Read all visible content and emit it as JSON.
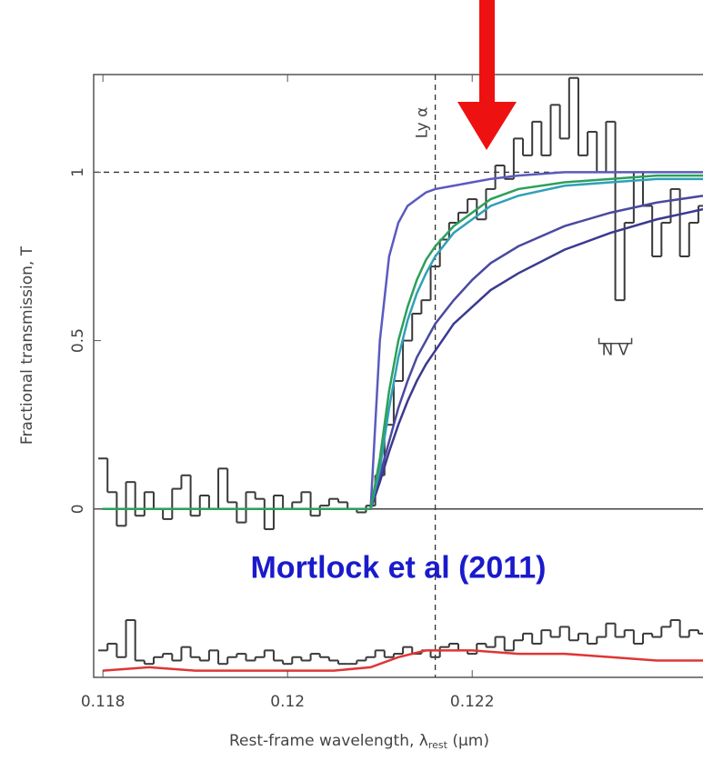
{
  "chart_data": {
    "type": "line",
    "ylabel": "Fractional transmission, T",
    "xlabel": "Rest-frame wavelength, λ",
    "xlabel_sub": "rest",
    "xlabel_unit": " (μm)",
    "xlim": [
      0.1179,
      0.1245
    ],
    "ylim": [
      -0.5,
      1.29
    ],
    "xticks": [
      0.118,
      0.12,
      0.122
    ],
    "yticks": [
      0,
      0.5,
      1
    ],
    "hlines": [
      {
        "y": 0,
        "style": "solid"
      },
      {
        "y": 1,
        "style": "dashed"
      }
    ],
    "vlines": [
      {
        "x": 0.1216,
        "style": "dashed",
        "label": "Ly α"
      }
    ],
    "annotations": [
      {
        "text": "N V",
        "x": 0.12355,
        "y": 0.47
      },
      {
        "text": "Mortlock et al (2011)",
        "x": 0.1212,
        "y": -0.18,
        "color": "#1a1acc"
      }
    ],
    "series": [
      {
        "color": "#3a3a3a",
        "step": true,
        "x": [
          0.118,
          0.1181,
          0.1182,
          0.1183,
          0.1184,
          0.1185,
          0.1186,
          0.1187,
          0.1188,
          0.1189,
          0.119,
          0.1191,
          0.1192,
          0.1193,
          0.1194,
          0.1195,
          0.1196,
          0.1197,
          0.1198,
          0.1199,
          0.12,
          0.1201,
          0.1202,
          0.1203,
          0.1204,
          0.1205,
          0.1206,
          0.1207,
          0.1208,
          0.1209,
          0.121,
          0.1211,
          0.1212,
          0.1213,
          0.1214,
          0.1215,
          0.1216,
          0.1217,
          0.1218,
          0.1219,
          0.122,
          0.1221,
          0.1222,
          0.1223,
          0.1224,
          0.1225,
          0.1226,
          0.1227,
          0.1228,
          0.1229,
          0.123,
          0.1231,
          0.1232,
          0.1233,
          0.1234,
          0.1235,
          0.1236,
          0.1237,
          0.1238,
          0.1239,
          0.124,
          0.1241,
          0.1242,
          0.1243,
          0.1244,
          0.1245
        ],
        "values": [
          0.15,
          0.05,
          -0.05,
          0.08,
          -0.02,
          0.05,
          0,
          -0.03,
          0.06,
          0.1,
          -0.02,
          0.04,
          0,
          0.12,
          0.02,
          -0.04,
          0.05,
          0.03,
          -0.06,
          0.04,
          0,
          0.02,
          0.05,
          -0.02,
          0.01,
          0.03,
          0.02,
          0,
          -0.01,
          0.01,
          0.1,
          0.25,
          0.38,
          0.5,
          0.58,
          0.62,
          0.72,
          0.8,
          0.85,
          0.88,
          0.92,
          0.86,
          0.95,
          1.02,
          0.98,
          1.1,
          1.05,
          1.15,
          1.05,
          1.2,
          1.1,
          1.28,
          1.05,
          1.12,
          1,
          1.15,
          0.62,
          0.85,
          1,
          0.9,
          0.75,
          0.85,
          0.95,
          0.75,
          0.85,
          0.9
        ]
      },
      {
        "color": "#3a3a3a",
        "step": true,
        "x": [
          0.118,
          0.1181,
          0.1182,
          0.1183,
          0.1184,
          0.1185,
          0.1186,
          0.1187,
          0.1188,
          0.1189,
          0.119,
          0.1191,
          0.1192,
          0.1193,
          0.1194,
          0.1195,
          0.1196,
          0.1197,
          0.1198,
          0.1199,
          0.12,
          0.1201,
          0.1202,
          0.1203,
          0.1204,
          0.1205,
          0.1206,
          0.1207,
          0.1208,
          0.1209,
          0.121,
          0.1211,
          0.1212,
          0.1213,
          0.1214,
          0.1215,
          0.1216,
          0.1217,
          0.1218,
          0.1219,
          0.122,
          0.1221,
          0.1222,
          0.1223,
          0.1224,
          0.1225,
          0.1226,
          0.1227,
          0.1228,
          0.1229,
          0.123,
          0.1231,
          0.1232,
          0.1233,
          0.1234,
          0.1235,
          0.1236,
          0.1237,
          0.1238,
          0.1239,
          0.124,
          0.1241,
          0.1242,
          0.1243,
          0.1244,
          0.1245
        ],
        "values": [
          -0.42,
          -0.4,
          -0.44,
          -0.33,
          -0.45,
          -0.46,
          -0.44,
          -0.43,
          -0.45,
          -0.41,
          -0.44,
          -0.45,
          -0.42,
          -0.46,
          -0.44,
          -0.43,
          -0.45,
          -0.44,
          -0.42,
          -0.45,
          -0.46,
          -0.44,
          -0.45,
          -0.43,
          -0.44,
          -0.45,
          -0.46,
          -0.46,
          -0.45,
          -0.44,
          -0.42,
          -0.44,
          -0.43,
          -0.41,
          -0.43,
          -0.42,
          -0.44,
          -0.41,
          -0.4,
          -0.42,
          -0.43,
          -0.4,
          -0.41,
          -0.38,
          -0.42,
          -0.39,
          -0.37,
          -0.4,
          -0.36,
          -0.38,
          -0.35,
          -0.39,
          -0.37,
          -0.4,
          -0.38,
          -0.34,
          -0.38,
          -0.36,
          -0.4,
          -0.37,
          -0.38,
          -0.35,
          -0.33,
          -0.38,
          -0.36,
          -0.37
        ]
      },
      {
        "color": "#e03535",
        "x": [
          0.118,
          0.1185,
          0.119,
          0.1195,
          0.12,
          0.1205,
          0.1209,
          0.1212,
          0.1215,
          0.122,
          0.1225,
          0.123,
          0.1235,
          0.124,
          0.1245
        ],
        "values": [
          -0.48,
          -0.47,
          -0.48,
          -0.48,
          -0.48,
          -0.48,
          -0.47,
          -0.44,
          -0.42,
          -0.42,
          -0.43,
          -0.43,
          -0.44,
          -0.45,
          -0.45
        ]
      },
      {
        "color": "#5a5ac0",
        "x": [
          0.118,
          0.1209,
          0.121,
          0.1211,
          0.1212,
          0.1213,
          0.1214,
          0.1215,
          0.1216,
          0.1218,
          0.122,
          0.1222,
          0.1225,
          0.123,
          0.1235,
          0.124,
          0.1245
        ],
        "values": [
          0,
          0,
          0.5,
          0.75,
          0.85,
          0.9,
          0.92,
          0.94,
          0.95,
          0.96,
          0.97,
          0.98,
          0.99,
          1,
          1,
          1,
          1
        ]
      },
      {
        "color": "#4a4aa0",
        "x": [
          0.118,
          0.1209,
          0.121,
          0.1211,
          0.1212,
          0.1213,
          0.1214,
          0.1215,
          0.1216,
          0.1218,
          0.122,
          0.1222,
          0.1225,
          0.123,
          0.1235,
          0.124,
          0.1245
        ],
        "values": [
          0,
          0,
          0.1,
          0.2,
          0.3,
          0.38,
          0.45,
          0.5,
          0.55,
          0.62,
          0.68,
          0.73,
          0.78,
          0.84,
          0.88,
          0.91,
          0.93
        ]
      },
      {
        "color": "#3a3a90",
        "x": [
          0.118,
          0.1209,
          0.121,
          0.1211,
          0.1212,
          0.1213,
          0.1214,
          0.1215,
          0.1216,
          0.1218,
          0.122,
          0.1222,
          0.1225,
          0.123,
          0.1235,
          0.124,
          0.1245
        ],
        "values": [
          0,
          0,
          0.08,
          0.17,
          0.25,
          0.32,
          0.38,
          0.43,
          0.47,
          0.55,
          0.6,
          0.65,
          0.7,
          0.77,
          0.82,
          0.86,
          0.89
        ]
      },
      {
        "color": "#30a0b8",
        "x": [
          0.118,
          0.1209,
          0.121,
          0.1211,
          0.1212,
          0.1213,
          0.1214,
          0.1215,
          0.1216,
          0.1218,
          0.122,
          0.1222,
          0.1225,
          0.123,
          0.1235,
          0.124,
          0.1245
        ],
        "values": [
          0,
          0,
          0.12,
          0.3,
          0.45,
          0.56,
          0.64,
          0.7,
          0.75,
          0.82,
          0.86,
          0.9,
          0.93,
          0.96,
          0.97,
          0.98,
          0.98
        ]
      },
      {
        "color": "#2ca05a",
        "x": [
          0.118,
          0.1209,
          0.121,
          0.1211,
          0.1212,
          0.1213,
          0.1214,
          0.1215,
          0.1216,
          0.1218,
          0.122,
          0.1222,
          0.1225,
          0.123,
          0.1235,
          0.124,
          0.1245
        ],
        "values": [
          0,
          0,
          0.15,
          0.35,
          0.5,
          0.6,
          0.68,
          0.74,
          0.78,
          0.84,
          0.88,
          0.92,
          0.95,
          0.97,
          0.98,
          0.99,
          0.99
        ]
      }
    ]
  }
}
